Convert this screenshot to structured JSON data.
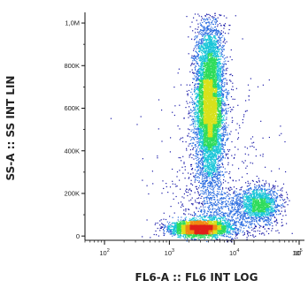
{
  "chart_data": {
    "type": "scatter",
    "style": "flow-cytometry density dot plot",
    "xlabel": "FL6-A :: FL6 INT LOG",
    "ylabel": "SS-A :: SS INT LIN",
    "x_scale": "log",
    "xlim": [
      50,
      100000
    ],
    "x_ticks": [
      {
        "value": 100,
        "base": "10",
        "exp": "2"
      },
      {
        "value": 1000,
        "base": "10",
        "exp": "3"
      },
      {
        "value": 10000,
        "base": "10",
        "exp": "4"
      },
      {
        "value": 100000,
        "base": "10",
        "exp": "5"
      },
      {
        "value": 1000000,
        "base": "10",
        "exp": ""
      }
    ],
    "y_scale": "linear",
    "ylim": [
      -20000,
      1050000
    ],
    "y_ticks": [
      {
        "value": 0,
        "label": "0"
      },
      {
        "value": 200000,
        "label": "200K"
      },
      {
        "value": 400000,
        "label": "400K"
      },
      {
        "value": 600000,
        "label": "600K"
      },
      {
        "value": 800000,
        "label": "800K"
      },
      {
        "value": 1000000,
        "label": "1,0M"
      }
    ],
    "colormap": [
      "#1a1aa8",
      "#2b6de0",
      "#19c6d8",
      "#2edc5a",
      "#d7e21c",
      "#f08a12",
      "#e0201a"
    ],
    "populations": [
      {
        "name": "",
        "center_fl6": 4200,
        "center_ss": 620000,
        "spread_log10_x": 0.11,
        "spread_y": 190000,
        "events": 7000
      },
      {
        "name": "",
        "center_fl6": 3000,
        "center_ss": 35000,
        "spread_log10_x": 0.22,
        "spread_y": 18000,
        "events": 3400
      },
      {
        "name": "",
        "center_fl6": 25000,
        "center_ss": 150000,
        "spread_log10_x": 0.15,
        "spread_y": 40000,
        "events": 1300
      },
      {
        "name": "",
        "center_fl6": 9000,
        "center_ss": 100000,
        "spread_log10_x": 0.35,
        "spread_y": 70000,
        "events": 900
      },
      {
        "name": "",
        "center_fl6": 5000,
        "center_ss": 300000,
        "spread_log10_x": 0.45,
        "spread_y": 250000,
        "events": 450
      }
    ],
    "grid": false,
    "legend": "none"
  }
}
